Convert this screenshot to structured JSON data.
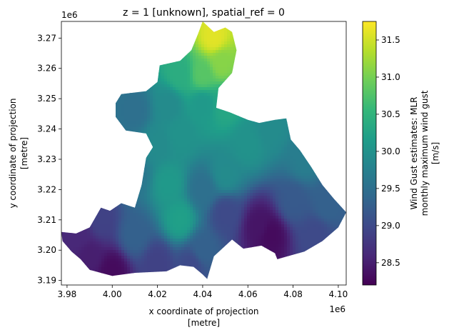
{
  "chart_data": {
    "type": "heatmap",
    "title": "z = 1 [unknown], spatial_ref = 0",
    "xlabel": [
      "x coordinate of projection",
      "[metre]"
    ],
    "ylabel": [
      "y coordinate of projection",
      "[metre]"
    ],
    "x_offset_label": "1e6",
    "y_offset_label": "1e6",
    "xlim": [
      3.9775,
      4.1035
    ],
    "ylim": [
      3.1885,
      3.2755
    ],
    "x_ticks": [
      3.98,
      4.0,
      4.02,
      4.04,
      4.06,
      4.08,
      4.1
    ],
    "x_tick_labels": [
      "3.98",
      "4.00",
      "4.02",
      "4.04",
      "4.06",
      "4.08",
      "4.10"
    ],
    "y_ticks": [
      3.19,
      3.2,
      3.21,
      3.22,
      3.23,
      3.24,
      3.25,
      3.26,
      3.27
    ],
    "y_tick_labels": [
      "3.19",
      "3.20",
      "3.21",
      "3.22",
      "3.23",
      "3.24",
      "3.25",
      "3.26",
      "3.27"
    ],
    "colorbar": {
      "label": [
        "Wind Gust estimates: MLR",
        "monthly maximum wind gust",
        "[m/s]"
      ],
      "range": [
        28.2,
        31.75
      ],
      "ticks": [
        28.5,
        29.0,
        29.5,
        30.0,
        30.5,
        31.0,
        31.5
      ],
      "tick_labels": [
        "28.5",
        "29.0",
        "29.5",
        "30.0",
        "30.5",
        "31.0",
        "31.5"
      ],
      "colormap": "viridis",
      "colormap_stops": [
        "#440154",
        "#482878",
        "#3e4989",
        "#31688e",
        "#26828e",
        "#1f9e89",
        "#35b779",
        "#6ece58",
        "#b5de2b",
        "#fde725"
      ]
    },
    "region_outline": [
      [
        4.04,
        3.2755
      ],
      [
        4.045,
        3.272
      ],
      [
        4.05,
        3.2735
      ],
      [
        4.053,
        3.272
      ],
      [
        4.055,
        3.266
      ],
      [
        4.053,
        3.2585
      ],
      [
        4.047,
        3.2535
      ],
      [
        4.046,
        3.247
      ],
      [
        4.052,
        3.2455
      ],
      [
        4.06,
        3.243
      ],
      [
        4.065,
        3.242
      ],
      [
        4.072,
        3.243
      ],
      [
        4.077,
        3.2435
      ],
      [
        4.079,
        3.2365
      ],
      [
        4.083,
        3.233
      ],
      [
        4.088,
        3.2275
      ],
      [
        4.093,
        3.2215
      ],
      [
        4.098,
        3.217
      ],
      [
        4.1035,
        3.2125
      ],
      [
        4.1,
        3.2075
      ],
      [
        4.093,
        3.203
      ],
      [
        4.085,
        3.1995
      ],
      [
        4.08,
        3.1985
      ],
      [
        4.073,
        3.197
      ],
      [
        4.072,
        3.199
      ],
      [
        4.066,
        3.2015
      ],
      [
        4.058,
        3.2005
      ],
      [
        4.053,
        3.2035
      ],
      [
        4.045,
        3.198
      ],
      [
        4.042,
        3.1905
      ],
      [
        4.04,
        3.192
      ],
      [
        4.036,
        3.1945
      ],
      [
        4.03,
        3.195
      ],
      [
        4.024,
        3.193
      ],
      [
        4.01,
        3.1925
      ],
      [
        4.0,
        3.1915
      ],
      [
        3.99,
        3.1935
      ],
      [
        3.986,
        3.197
      ],
      [
        3.982,
        3.1995
      ],
      [
        3.978,
        3.203
      ],
      [
        3.9775,
        3.206
      ],
      [
        3.984,
        3.2055
      ],
      [
        3.99,
        3.2075
      ],
      [
        3.995,
        3.214
      ],
      [
        3.999,
        3.213
      ],
      [
        4.004,
        3.2155
      ],
      [
        4.01,
        3.214
      ],
      [
        4.013,
        3.2215
      ],
      [
        4.015,
        3.2305
      ],
      [
        4.018,
        3.234
      ],
      [
        4.015,
        3.2385
      ],
      [
        4.006,
        3.2395
      ],
      [
        4.0015,
        3.244
      ],
      [
        4.0015,
        3.2485
      ],
      [
        4.004,
        3.2515
      ],
      [
        4.015,
        3.2525
      ],
      [
        4.02,
        3.2555
      ],
      [
        4.021,
        3.261
      ],
      [
        4.03,
        3.2625
      ],
      [
        4.035,
        3.266
      ],
      [
        4.038,
        3.2715
      ]
    ],
    "field_anchors": [
      [
        4.045,
        3.27,
        31.6
      ],
      [
        4.048,
        3.262,
        31.1
      ],
      [
        4.04,
        3.258,
        30.8
      ],
      [
        4.03,
        3.258,
        30.4
      ],
      [
        4.05,
        3.248,
        30.3
      ],
      [
        4.04,
        3.248,
        30.1
      ],
      [
        4.025,
        3.248,
        29.9
      ],
      [
        4.01,
        3.246,
        29.5
      ],
      [
        4.07,
        3.24,
        29.9
      ],
      [
        4.06,
        3.235,
        30.0
      ],
      [
        4.085,
        3.23,
        29.7
      ],
      [
        4.095,
        3.215,
        29.3
      ],
      [
        4.08,
        3.216,
        29.2
      ],
      [
        4.07,
        3.205,
        28.3
      ],
      [
        4.065,
        3.208,
        28.4
      ],
      [
        4.05,
        3.212,
        29.0
      ],
      [
        4.04,
        3.2,
        29.3
      ],
      [
        4.04,
        3.22,
        29.5
      ],
      [
        4.03,
        3.21,
        30.2
      ],
      [
        4.025,
        3.222,
        30.1
      ],
      [
        4.02,
        3.235,
        29.9
      ],
      [
        4.01,
        3.225,
        29.6
      ],
      [
        4.01,
        3.205,
        29.3
      ],
      [
        3.995,
        3.21,
        28.9
      ],
      [
        3.985,
        3.205,
        28.6
      ],
      [
        3.99,
        3.198,
        28.5
      ],
      [
        4.0,
        3.193,
        28.3
      ],
      [
        4.02,
        3.196,
        28.9
      ],
      [
        4.035,
        3.195,
        29.0
      ],
      [
        4.03,
        3.238,
        30.0
      ],
      [
        4.05,
        3.225,
        29.9
      ],
      [
        4.09,
        3.205,
        29.0
      ]
    ]
  }
}
